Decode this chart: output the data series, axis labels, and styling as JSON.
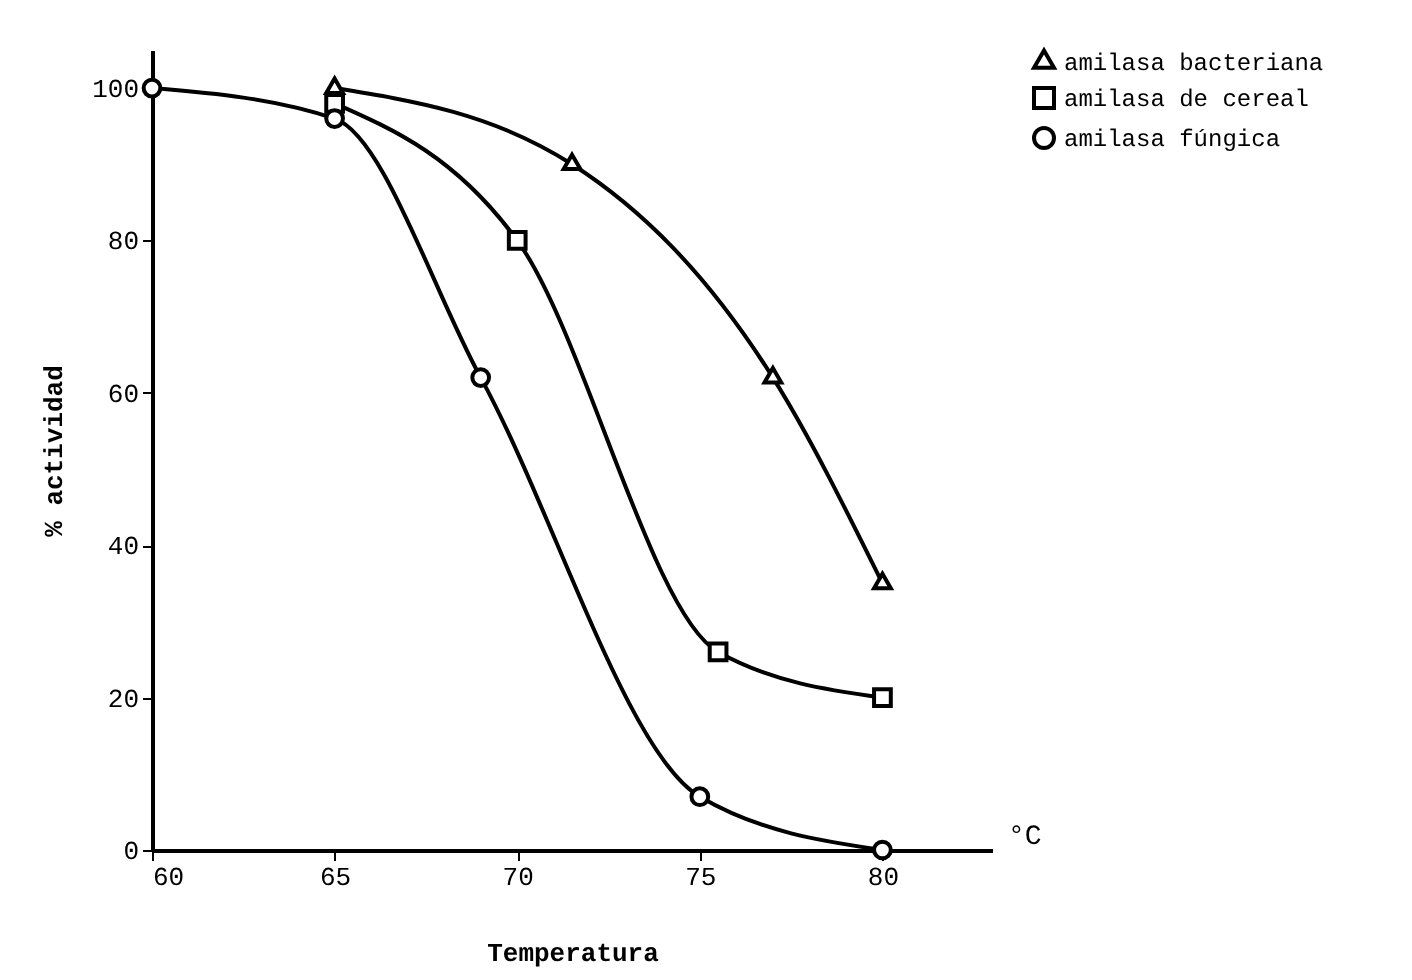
{
  "chart_data": {
    "type": "line",
    "xlabel": "Temperatura",
    "ylabel": "% actividad",
    "annotations": [
      "°C"
    ],
    "xlim": [
      60,
      83
    ],
    "xticks": [
      60,
      65,
      70,
      75,
      80
    ],
    "ylim": [
      0,
      105
    ],
    "yticks": [
      0,
      20,
      40,
      60,
      80,
      100
    ],
    "grid": false,
    "legend": "top right",
    "line_style": "solid",
    "series": [
      {
        "name": "amilasa bacteriana",
        "color": "#000000",
        "marker": "triangle",
        "x": [
          65,
          71.5,
          77,
          80
        ],
        "values": [
          100,
          90,
          62,
          35
        ]
      },
      {
        "name": "amilasa de cereal",
        "color": "#000000",
        "marker": "square",
        "x": [
          65,
          70,
          75.5,
          80
        ],
        "values": [
          98,
          80,
          26,
          20
        ]
      },
      {
        "name": "amilasa fúngica",
        "color": "#000000",
        "marker": "circle",
        "x": [
          60,
          65,
          69,
          75,
          80
        ],
        "values": [
          100,
          96,
          62,
          7,
          0
        ]
      }
    ]
  }
}
